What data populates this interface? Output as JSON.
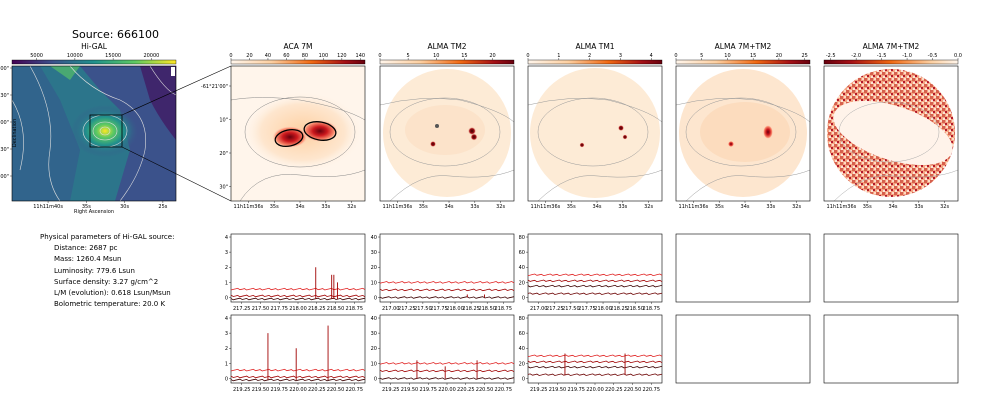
{
  "source_title": "Source: 666100",
  "info": {
    "heading": "Physical parameters of Hi-GAL source:",
    "lines": [
      "Distance: 2687 pc",
      "Mass: 1260.4 Msun",
      "Luminosity: 779.6 Lsun",
      "Surface density: 3.27 g/cm^2",
      "L/M (evolution): 0.618 Lsun/Msun",
      "Bolometric temperature: 20.0 K"
    ]
  },
  "colors": {
    "viridis_dark": "#440154",
    "viridis_mid": "#21918c",
    "viridis_light": "#b5de2b",
    "oranges_light": "#fdf0e0",
    "reds_dark": "#67000d",
    "spectrum_dark": "#3b0000",
    "spectrum_red": "#e02020",
    "spectrum_mid": "#a00000"
  },
  "chart_data": [
    {
      "type": "heatmap",
      "title": "Hi-GAL",
      "colorbar_ticks": [
        "5000",
        "10000",
        "15000",
        "20000"
      ],
      "xlabel": "Right Ascension",
      "ylabel": "Declination",
      "x_ticks": [
        "11h11m40s",
        "35s",
        "30s",
        "25s"
      ],
      "y_ticks": [
        "-61°20'00\"",
        "30\"",
        "21'00\"",
        "30\"",
        "22'00\""
      ]
    },
    {
      "type": "heatmap",
      "title": "ACA 7M",
      "colorbar_ticks": [
        "0",
        "20",
        "40",
        "60",
        "80",
        "100",
        "120",
        "140"
      ],
      "x_ticks": [
        "11h11m36s",
        "35s",
        "34s",
        "33s",
        "32s"
      ],
      "y_ticks": [
        "-61°21'00\"",
        "10\"",
        "20\"",
        "30\""
      ]
    },
    {
      "type": "heatmap",
      "title": "ALMA TM2",
      "colorbar_ticks": [
        "0",
        "5",
        "10",
        "15",
        "20"
      ],
      "x_ticks": [
        "11h11m36s",
        "35s",
        "34s",
        "33s",
        "32s"
      ]
    },
    {
      "type": "heatmap",
      "title": "ALMA TM1",
      "colorbar_ticks": [
        "0",
        "1",
        "2",
        "3",
        "4"
      ],
      "x_ticks": [
        "11h11m36s",
        "35s",
        "34s",
        "33s",
        "32s"
      ]
    },
    {
      "type": "heatmap",
      "title": "ALMA 7M+TM2",
      "colorbar_ticks": [
        "0",
        "5",
        "10",
        "15",
        "20",
        "25"
      ],
      "x_ticks": [
        "11h11m36s",
        "35s",
        "34s",
        "33s",
        "32s"
      ]
    },
    {
      "type": "heatmap",
      "title": "ALMA 7M+TM2",
      "colorbar_ticks": [
        "-2.5",
        "-2.0",
        "-1.5",
        "-1.0",
        "-0.5",
        "0.0"
      ],
      "x_ticks": [
        "11h11m36s",
        "35s",
        "34s",
        "33s",
        "32s"
      ]
    },
    {
      "type": "line",
      "name": "spectrum-row1-col1",
      "x_ticks": [
        "217.25",
        "217.50",
        "217.75",
        "218.00",
        "218.25",
        "218.50",
        "218.75"
      ],
      "xlim": [
        217.05,
        218.9
      ],
      "y_ticks": [
        "0",
        "1",
        "2",
        "3",
        "4"
      ],
      "ylim": [
        -0.3,
        4.2
      ],
      "baselines": [
        0.55,
        0.1,
        -0.1
      ],
      "peaks": [
        {
          "x": 218.22,
          "y": 2.0
        },
        {
          "x": 218.44,
          "y": 1.5
        },
        {
          "x": 218.47,
          "y": 1.5
        },
        {
          "x": 218.52,
          "y": 1.0
        }
      ]
    },
    {
      "type": "line",
      "name": "spectrum-row1-col2",
      "x_ticks": [
        "217.00",
        "217.25",
        "217.50",
        "217.75",
        "218.00",
        "218.25",
        "218.50",
        "218.75"
      ],
      "xlim": [
        216.95,
        218.9
      ],
      "y_ticks": [
        "0",
        "10",
        "20",
        "30",
        "40"
      ],
      "ylim": [
        -3,
        42
      ],
      "baselines": [
        10,
        5,
        0
      ],
      "peaks": [
        {
          "x": 218.22,
          "y": 2
        },
        {
          "x": 218.47,
          "y": 2
        }
      ]
    },
    {
      "type": "line",
      "name": "spectrum-row1-col3",
      "x_ticks": [
        "217.00",
        "217.25",
        "217.50",
        "217.75",
        "218.00",
        "218.25",
        "218.50",
        "218.75"
      ],
      "xlim": [
        216.95,
        218.9
      ],
      "y_ticks": [
        "0",
        "20",
        "40",
        "60",
        "80"
      ],
      "ylim": [
        -6,
        84
      ],
      "baselines": [
        30,
        22,
        15,
        5
      ],
      "peaks": []
    },
    {
      "type": "line",
      "name": "spectrum-row2-col1",
      "x_ticks": [
        "219.25",
        "219.50",
        "219.75",
        "220.00",
        "220.25",
        "220.50",
        "220.75"
      ],
      "xlim": [
        219.05,
        220.9
      ],
      "y_ticks": [
        "0",
        "1",
        "2",
        "3",
        "4"
      ],
      "ylim": [
        -0.3,
        4.2
      ],
      "baselines": [
        0.55,
        0.1,
        -0.1
      ],
      "peaks": [
        {
          "x": 219.56,
          "y": 3.0
        },
        {
          "x": 219.95,
          "y": 2.0
        },
        {
          "x": 220.39,
          "y": 3.5
        }
      ]
    },
    {
      "type": "line",
      "name": "spectrum-row2-col2",
      "x_ticks": [
        "219.25",
        "219.50",
        "219.75",
        "220.00",
        "220.25",
        "220.50",
        "220.75"
      ],
      "xlim": [
        219.05,
        220.9
      ],
      "y_ticks": [
        "0",
        "10",
        "20",
        "30",
        "40"
      ],
      "ylim": [
        -3,
        42
      ],
      "baselines": [
        10,
        5,
        0
      ],
      "peaks": [
        {
          "x": 219.56,
          "y": 12
        },
        {
          "x": 219.95,
          "y": 8
        },
        {
          "x": 220.39,
          "y": 12
        }
      ]
    },
    {
      "type": "line",
      "name": "spectrum-row2-col3",
      "x_ticks": [
        "219.25",
        "219.50",
        "219.75",
        "220.00",
        "220.25",
        "220.50",
        "220.75"
      ],
      "xlim": [
        219.05,
        220.9
      ],
      "y_ticks": [
        "0",
        "20",
        "40",
        "60",
        "80"
      ],
      "ylim": [
        -6,
        84
      ],
      "baselines": [
        30,
        22,
        15,
        5
      ],
      "peaks": [
        {
          "x": 219.56,
          "y": 33
        },
        {
          "x": 220.39,
          "y": 33
        }
      ]
    }
  ]
}
